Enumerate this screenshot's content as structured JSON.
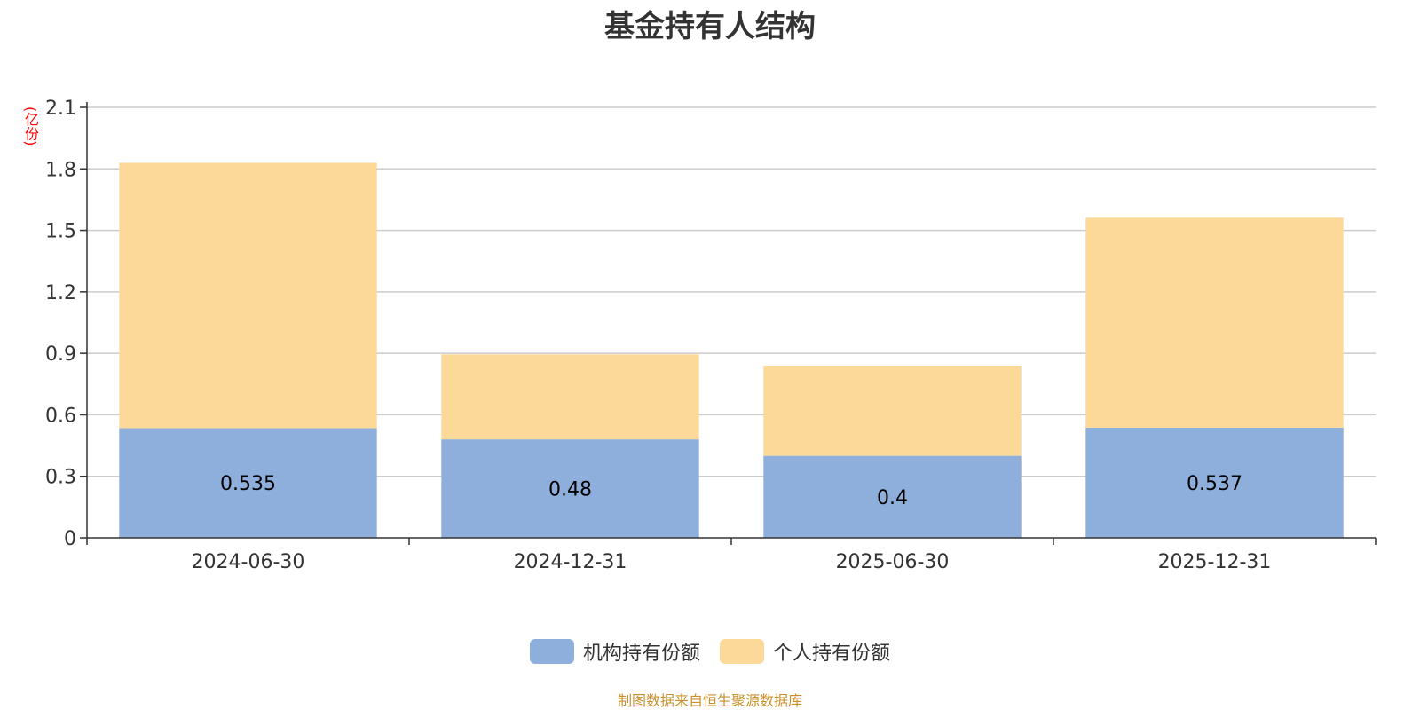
{
  "chart_data": {
    "type": "bar",
    "stacked": true,
    "title": "基金持有人结构",
    "unit_label": "(亿份)",
    "categories": [
      "2024-06-30",
      "2024-12-31",
      "2025-06-30",
      "2025-12-31"
    ],
    "series": [
      {
        "name": "机构持有份额",
        "color": "#8eaedb",
        "values": [
          0.535,
          0.48,
          0.4,
          0.537
        ],
        "data_labels": [
          "0.535",
          "0.48",
          "0.4",
          "0.537"
        ]
      },
      {
        "name": "个人持有份额",
        "color": "#fdd999",
        "values": [
          1.295,
          0.415,
          0.44,
          1.025
        ]
      }
    ],
    "ylim": [
      0,
      2.1
    ],
    "yticks": [
      "0",
      "0.3",
      "0.6",
      "0.9",
      "1.2",
      "1.5",
      "1.8",
      "2.1"
    ],
    "grid": true,
    "legend_position": "bottom"
  },
  "source_note": "制图数据来自恒生聚源数据库"
}
